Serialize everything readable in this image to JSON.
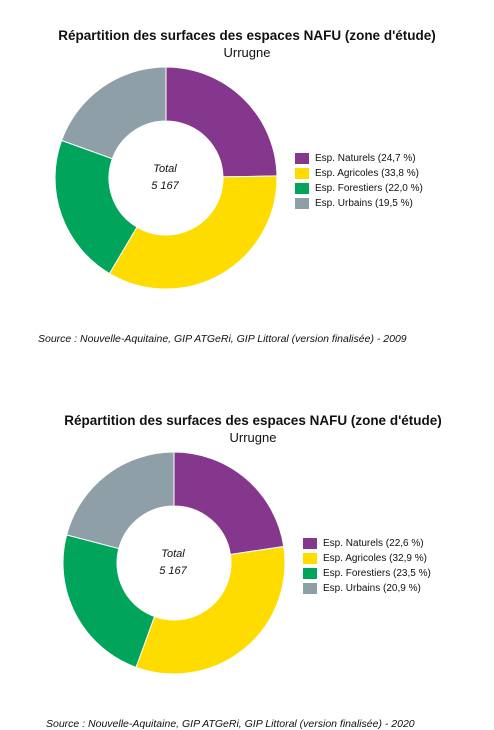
{
  "colors": {
    "naturels": "#84378C",
    "agricoles": "#FFDC00",
    "forestiers": "#00A55B",
    "urbains": "#8E9FA8"
  },
  "chart_data": [
    {
      "type": "pie",
      "title": "Répartition des surfaces des espaces NAFU (zone d'étude)",
      "subtitle": "Urrugne",
      "center_label": "Total",
      "center_value": "5 167",
      "legend_position": "right",
      "slices": [
        {
          "label": "Esp. Naturels (24,7 %)",
          "value": 24.7,
          "color_key": "naturels"
        },
        {
          "label": "Esp. Agricoles (33,8 %)",
          "value": 33.8,
          "color_key": "agricoles"
        },
        {
          "label": "Esp. Forestiers (22,0 %)",
          "value": 22.0,
          "color_key": "forestiers"
        },
        {
          "label": "Esp. Urbains (19,5 %)",
          "value": 19.5,
          "color_key": "urbains"
        }
      ],
      "source": "Source : Nouvelle-Aquitaine, GIP ATGeRi, GIP Littoral (version finalisée) - 2009"
    },
    {
      "type": "pie",
      "title": "Répartition des surfaces des espaces NAFU (zone d'étude)",
      "subtitle": "Urrugne",
      "center_label": "Total",
      "center_value": "5 167",
      "legend_position": "right",
      "slices": [
        {
          "label": "Esp. Naturels (22,6 %)",
          "value": 22.6,
          "color_key": "naturels"
        },
        {
          "label": "Esp. Agricoles (32,9 %)",
          "value": 32.9,
          "color_key": "agricoles"
        },
        {
          "label": "Esp. Forestiers (23,5 %)",
          "value": 23.5,
          "color_key": "forestiers"
        },
        {
          "label": "Esp. Urbains (20,9 %)",
          "value": 20.9,
          "color_key": "urbains"
        }
      ],
      "source": "Source : Nouvelle-Aquitaine, GIP ATGeRi, GIP Littoral (version finalisée) - 2020"
    }
  ]
}
